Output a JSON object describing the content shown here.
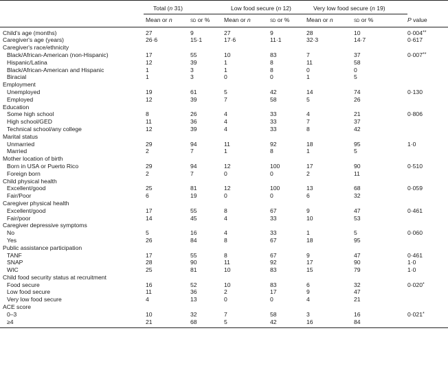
{
  "header": {
    "group_total": "Total (",
    "group_total_n": "n",
    "group_total_count": " 31)",
    "group_low": "Low food secure (",
    "group_low_n": "n",
    "group_low_count": " 12)",
    "group_vlow": "Very low food secure (",
    "group_vlow_n": "n",
    "group_vlow_count": " 19)",
    "col_mean": "Mean or ",
    "col_mean_n": "n",
    "col_sd": "sd",
    "col_sd_suffix": " or %",
    "col_p": "P",
    "col_p_suffix": " value"
  },
  "rows": [
    {
      "label": "Child's age (months)",
      "kind": "data",
      "v": [
        "27",
        "9",
        "27",
        "9",
        "28",
        "10"
      ],
      "p": "0·004",
      "sig": "**"
    },
    {
      "label": "Caregiver's age (years)",
      "kind": "data",
      "v": [
        "26·6",
        "15·1",
        "17·6",
        "11·1",
        "32·3",
        "14·7"
      ],
      "p": "0·617",
      "sig": ""
    },
    {
      "label": "Caregiver's race/ethnicity",
      "kind": "section"
    },
    {
      "label": "Black/African-American (non-Hispanic)",
      "kind": "sub",
      "v": [
        "17",
        "55",
        "10",
        "83",
        "7",
        "37"
      ],
      "p": "0·007",
      "sig": "**"
    },
    {
      "label": "Hispanic/Latina",
      "kind": "sub",
      "v": [
        "12",
        "39",
        "1",
        "8",
        "11",
        "58"
      ],
      "p": "",
      "sig": ""
    },
    {
      "label": "Black/African-American and Hispanic",
      "kind": "sub",
      "v": [
        "1",
        "3",
        "1",
        "8",
        "0",
        "0"
      ],
      "p": "",
      "sig": ""
    },
    {
      "label": "Biracial",
      "kind": "sub",
      "v": [
        "1",
        "3",
        "0",
        "0",
        "1",
        "5"
      ],
      "p": "",
      "sig": ""
    },
    {
      "label": "Employment",
      "kind": "section"
    },
    {
      "label": "Unemployed",
      "kind": "sub",
      "v": [
        "19",
        "61",
        "5",
        "42",
        "14",
        "74"
      ],
      "p": "0·130",
      "sig": ""
    },
    {
      "label": "Employed",
      "kind": "sub",
      "v": [
        "12",
        "39",
        "7",
        "58",
        "5",
        "26"
      ],
      "p": "",
      "sig": ""
    },
    {
      "label": "Education",
      "kind": "section"
    },
    {
      "label": "Some high school",
      "kind": "sub",
      "v": [
        "8",
        "26",
        "4",
        "33",
        "4",
        "21"
      ],
      "p": "0·806",
      "sig": ""
    },
    {
      "label": "High school/GED",
      "kind": "sub",
      "v": [
        "11",
        "36",
        "4",
        "33",
        "7",
        "37"
      ],
      "p": "",
      "sig": ""
    },
    {
      "label": "Technical school/any college",
      "kind": "sub",
      "v": [
        "12",
        "39",
        "4",
        "33",
        "8",
        "42"
      ],
      "p": "",
      "sig": ""
    },
    {
      "label": "Marital status",
      "kind": "section"
    },
    {
      "label": "Unmarried",
      "kind": "sub",
      "v": [
        "29",
        "94",
        "11",
        "92",
        "18",
        "95"
      ],
      "p": "1·0",
      "sig": ""
    },
    {
      "label": "Married",
      "kind": "sub",
      "v": [
        "2",
        "7",
        "1",
        "8",
        "1",
        "5"
      ],
      "p": "",
      "sig": ""
    },
    {
      "label": "Mother location of birth",
      "kind": "section"
    },
    {
      "label": "Born in USA or Puerto Rico",
      "kind": "sub",
      "v": [
        "29",
        "94",
        "12",
        "100",
        "17",
        "90"
      ],
      "p": "0·510",
      "sig": ""
    },
    {
      "label": "Foreign born",
      "kind": "sub",
      "v": [
        "2",
        "7",
        "0",
        "0",
        "2",
        "11"
      ],
      "p": "",
      "sig": ""
    },
    {
      "label": "Child physical health",
      "kind": "section"
    },
    {
      "label": "Excellent/good",
      "kind": "sub",
      "v": [
        "25",
        "81",
        "12",
        "100",
        "13",
        "68"
      ],
      "p": "0·059",
      "sig": ""
    },
    {
      "label": "Fair/Poor",
      "kind": "sub",
      "v": [
        "6",
        "19",
        "0",
        "0",
        "6",
        "32"
      ],
      "p": "",
      "sig": ""
    },
    {
      "label": "Caregiver physical health",
      "kind": "section"
    },
    {
      "label": "Excellent/good",
      "kind": "sub",
      "v": [
        "17",
        "55",
        "8",
        "67",
        "9",
        "47"
      ],
      "p": "0·461",
      "sig": ""
    },
    {
      "label": "Fair/poor",
      "kind": "sub",
      "v": [
        "14",
        "45",
        "4",
        "33",
        "10",
        "53"
      ],
      "p": "",
      "sig": ""
    },
    {
      "label": "Caregiver depressive symptoms",
      "kind": "section"
    },
    {
      "label": "No",
      "kind": "sub",
      "v": [
        "5",
        "16",
        "4",
        "33",
        "1",
        "5"
      ],
      "p": "0·060",
      "sig": ""
    },
    {
      "label": "Yes",
      "kind": "sub",
      "v": [
        "26",
        "84",
        "8",
        "67",
        "18",
        "95"
      ],
      "p": "",
      "sig": ""
    },
    {
      "label": "Public assistance participation",
      "kind": "section"
    },
    {
      "label": "TANF",
      "kind": "sub",
      "v": [
        "17",
        "55",
        "8",
        "67",
        "9",
        "47"
      ],
      "p": "0·461",
      "sig": ""
    },
    {
      "label": "SNAP",
      "kind": "sub",
      "v": [
        "28",
        "90",
        "11",
        "92",
        "17",
        "90"
      ],
      "p": "1·0",
      "sig": ""
    },
    {
      "label": "WIC",
      "kind": "sub",
      "v": [
        "25",
        "81",
        "10",
        "83",
        "15",
        "79"
      ],
      "p": "1·0",
      "sig": ""
    },
    {
      "label": "Child food security status at recruitment",
      "kind": "section"
    },
    {
      "label": "Food secure",
      "kind": "sub",
      "v": [
        "16",
        "52",
        "10",
        "83",
        "6",
        "32"
      ],
      "p": "0·020",
      "sig": "*"
    },
    {
      "label": "Low food secure",
      "kind": "sub",
      "v": [
        "11",
        "36",
        "2",
        "17",
        "9",
        "47"
      ],
      "p": "",
      "sig": ""
    },
    {
      "label": "Very low food secure",
      "kind": "sub",
      "v": [
        "4",
        "13",
        "0",
        "0",
        "4",
        "21"
      ],
      "p": "",
      "sig": ""
    },
    {
      "label": "ACE score",
      "kind": "section"
    },
    {
      "label": "0–3",
      "kind": "sub",
      "v": [
        "10",
        "32",
        "7",
        "58",
        "3",
        "16"
      ],
      "p": "0·021",
      "sig": "*"
    },
    {
      "label": "≥4",
      "kind": "sub",
      "v": [
        "21",
        "68",
        "5",
        "42",
        "16",
        "84"
      ],
      "p": "",
      "sig": ""
    }
  ]
}
